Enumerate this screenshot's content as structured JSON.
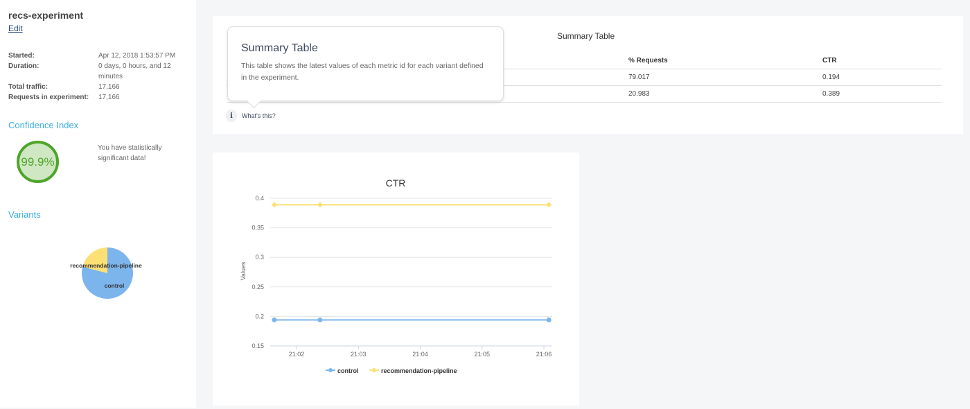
{
  "sidebar": {
    "title": "recs-experiment",
    "edit": "Edit",
    "info": [
      {
        "k": "Started:",
        "v": "Apr 12, 2018 1:53:57 PM"
      },
      {
        "k": "Duration:",
        "v": "0 days, 0 hours, and 12 minutes"
      },
      {
        "k": "Total traffic:",
        "v": "17,166"
      },
      {
        "k": "Requests in experiment:",
        "v": "17,166"
      }
    ],
    "confidence_heading": "Confidence Index",
    "confidence_value": "99.9%",
    "confidence_msg": "You have statistically significant data!",
    "variants_heading": "Variants",
    "pie": [
      {
        "label": "control",
        "value": 79.017,
        "color": "#7cb5ec"
      },
      {
        "label": "recommendation-pipeline",
        "value": 20.983,
        "color": "#fde074"
      }
    ]
  },
  "summary": {
    "title": "Summary Table",
    "columns": [
      "% Requests",
      "CTR"
    ],
    "rows": [
      [
        "79.017",
        "0.194"
      ],
      [
        "20.983",
        "0.389"
      ]
    ],
    "tooltip_title": "Summary Table",
    "tooltip_text": "This table shows the latest values of each metric id for each variant defined in the experiment.",
    "whats_this": "What's this?"
  },
  "chart_data": {
    "type": "line",
    "title": "CTR",
    "xlabel": "",
    "ylabel": "Values",
    "ylim": [
      0.15,
      0.4
    ],
    "yticks": [
      "0.15",
      "0.2",
      "0.25",
      "0.3",
      "0.35",
      "0.4"
    ],
    "xticks": [
      "21:02",
      "21:03",
      "21:04",
      "21:05",
      "21:06"
    ],
    "x_minutes": [
      1.64,
      2.38,
      6.08
    ],
    "series": [
      {
        "name": "control",
        "color": "#7cb5ec",
        "values": [
          0.194,
          0.194,
          0.194
        ]
      },
      {
        "name": "recommendation-pipeline",
        "color": "#fde074",
        "values": [
          0.389,
          0.389,
          0.389
        ]
      }
    ],
    "legend": "bottom"
  }
}
